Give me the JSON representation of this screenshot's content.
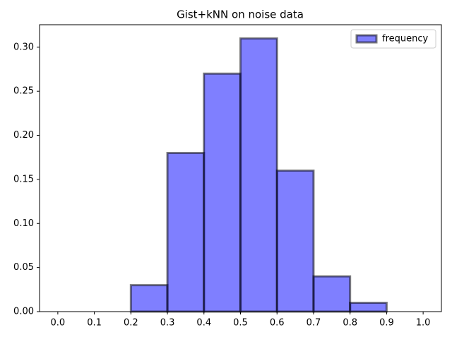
{
  "chart_data": {
    "type": "histogram",
    "title": "Gist+kNN on noise data",
    "bins": [
      0.0,
      0.1,
      0.2,
      0.3,
      0.4,
      0.5,
      0.6,
      0.7,
      0.8,
      0.9,
      1.0
    ],
    "series": [
      {
        "name": "frequency",
        "color": "#0000ff",
        "edgecolor": "#000000",
        "values": [
          0,
          0,
          0.03,
          0.18,
          0.27,
          0.31,
          0.16,
          0.04,
          0.01,
          0
        ]
      }
    ],
    "xlim": [
      -0.05,
      1.05
    ],
    "ylim": [
      0,
      0.3255
    ],
    "xticks": [
      {
        "value": 0.0,
        "label": "0.0"
      },
      {
        "value": 0.1,
        "label": "0.1"
      },
      {
        "value": 0.2,
        "label": "0.2"
      },
      {
        "value": 0.3,
        "label": "0.3"
      },
      {
        "value": 0.4,
        "label": "0.4"
      },
      {
        "value": 0.5,
        "label": "0.5"
      },
      {
        "value": 0.6,
        "label": "0.6"
      },
      {
        "value": 0.7,
        "label": "0.7"
      },
      {
        "value": 0.8,
        "label": "0.8"
      },
      {
        "value": 0.9,
        "label": "0.9"
      },
      {
        "value": 1.0,
        "label": "1.0"
      }
    ],
    "yticks": [
      {
        "value": 0,
        "label": "0.00"
      },
      {
        "value": 0.05,
        "label": "0.05"
      },
      {
        "value": 0.1,
        "label": "0.10"
      },
      {
        "value": 0.15,
        "label": "0.15"
      },
      {
        "value": 0.2,
        "label": "0.20"
      },
      {
        "value": 0.25,
        "label": "0.25"
      },
      {
        "value": 0.3,
        "label": "0.30"
      }
    ],
    "legend": "upper right",
    "grid": false
  }
}
